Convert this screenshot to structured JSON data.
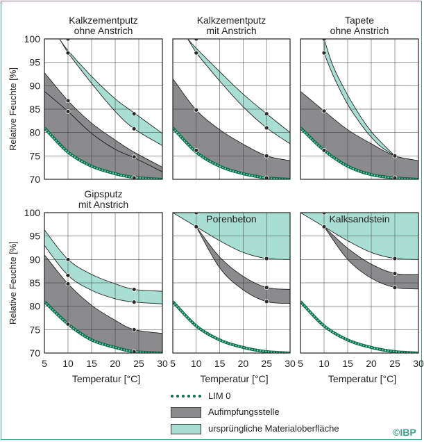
{
  "chart_data": [
    {
      "type": "area",
      "title": "Kalkzementputz ohne Anstrich",
      "title_lines": [
        "Kalkzementputz",
        "ohne Anstrich"
      ],
      "xlabel": "",
      "ylabel": "Relative Feuchte [%]",
      "xlim": [
        5,
        30
      ],
      "ylim": [
        70,
        100
      ],
      "x_ticks": [],
      "y_ticks": [
        "100",
        "95",
        "90",
        "85",
        "80",
        "75",
        "70"
      ],
      "grid": true,
      "bands": [
        {
          "series": "ursprüngliche Materialoberfläche",
          "upper": [
            [
              8.2,
              100
            ],
            [
              10,
              97.5
            ],
            [
              15,
              92
            ],
            [
              20,
              87.2
            ],
            [
              24,
              84.2
            ],
            [
              30,
              79.8
            ]
          ],
          "lower": [
            [
              10,
              97
            ],
            [
              15,
              90.5
            ],
            [
              20,
              84.5
            ],
            [
              24,
              80.8
            ],
            [
              30,
              77.2
            ]
          ]
        },
        {
          "series": "Aufimpfungsstelle",
          "upper": [
            [
              5,
              92.8
            ],
            [
              10,
              86.8
            ],
            [
              15,
              82
            ],
            [
              20,
              78.4
            ],
            [
              24,
              75.8
            ],
            [
              30,
              72.6
            ]
          ],
          "lower": [
            [
              5,
              88.8
            ],
            [
              10,
              84.5
            ],
            [
              15,
              79.8
            ],
            [
              20,
              76.4
            ],
            [
              24,
              74.6
            ],
            [
              30,
              71.6
            ]
          ]
        },
        {
          "series": "Aufimpfungsstelle",
          "upper": [
            [
              5,
              88.8
            ],
            [
              10,
              84.5
            ],
            [
              15,
              79.8
            ],
            [
              20,
              76.4
            ],
            [
              24,
              74.6
            ],
            [
              30,
              71.6
            ]
          ],
          "lower": [
            [
              5,
              81
            ],
            [
              10,
              75.8
            ],
            [
              15,
              72.8
            ],
            [
              20,
              71.2
            ],
            [
              24,
              70.4
            ],
            [
              30,
              70
            ]
          ]
        }
      ],
      "points": [
        [
          10,
          100
        ],
        [
          10,
          97
        ],
        [
          10,
          86.8
        ],
        [
          10,
          84.5
        ],
        [
          24,
          84
        ],
        [
          24,
          80.8
        ],
        [
          24,
          74.8
        ],
        [
          24,
          70.3
        ]
      ]
    },
    {
      "type": "area",
      "title": "Kalkzementputz mit Anstrich",
      "title_lines": [
        "Kalkzementputz",
        "mit Anstrich"
      ],
      "xlabel": "",
      "ylabel": "",
      "xlim": [
        5,
        30
      ],
      "ylim": [
        70,
        100
      ],
      "x_ticks": [],
      "y_ticks": [],
      "grid": true,
      "bands": [
        {
          "series": "ursprüngliche Materialoberfläche",
          "upper": [
            [
              8.2,
              100
            ],
            [
              10,
              98
            ],
            [
              15,
              93
            ],
            [
              20,
              88.2
            ],
            [
              25,
              84
            ],
            [
              30,
              80
            ]
          ],
          "lower": [
            [
              10,
              97
            ],
            [
              15,
              91
            ],
            [
              20,
              85.5
            ],
            [
              25,
              81
            ],
            [
              30,
              77.6
            ]
          ]
        },
        {
          "series": "Aufimpfungsstelle",
          "upper": [
            [
              5,
              91.5
            ],
            [
              10,
              84.8
            ],
            [
              15,
              80.6
            ],
            [
              20,
              77.5
            ],
            [
              25,
              75
            ],
            [
              30,
              74
            ]
          ],
          "lower": [
            [
              5,
              81
            ],
            [
              10,
              75.8
            ],
            [
              15,
              72.8
            ],
            [
              20,
              71.2
            ],
            [
              25,
              70.3
            ],
            [
              30,
              70
            ]
          ]
        }
      ],
      "points": [
        [
          10,
          100
        ],
        [
          10,
          97
        ],
        [
          10,
          84.8
        ],
        [
          10,
          76.2
        ],
        [
          25,
          84
        ],
        [
          25,
          81
        ],
        [
          25,
          75
        ],
        [
          25,
          70.3
        ]
      ]
    },
    {
      "type": "area",
      "title": "Tapete ohne Anstrich",
      "title_lines": [
        "Tapete",
        "ohne Anstrich"
      ],
      "xlabel": "",
      "ylabel": "",
      "xlim": [
        5,
        30
      ],
      "ylim": [
        70,
        100
      ],
      "x_ticks": [],
      "y_ticks": [],
      "grid": true,
      "bands": [
        {
          "series": "ursprüngliche Materialoberfläche",
          "upper": [
            [
              10,
              100
            ],
            [
              12,
              94
            ],
            [
              15,
              88
            ],
            [
              18,
              83
            ],
            [
              20,
              80.2
            ],
            [
              22,
              78
            ],
            [
              25,
              75
            ]
          ],
          "lower": [
            [
              10,
              97
            ],
            [
              12,
              92
            ],
            [
              15,
              86
            ],
            [
              18,
              81.5
            ],
            [
              20,
              79
            ],
            [
              22,
              77
            ],
            [
              25,
              75
            ]
          ]
        },
        {
          "series": "Aufimpfungsstelle",
          "upper": [
            [
              5,
              88.8
            ],
            [
              10,
              84.6
            ],
            [
              15,
              80.6
            ],
            [
              20,
              77.6
            ],
            [
              25,
              75
            ],
            [
              30,
              74
            ]
          ],
          "lower": [
            [
              5,
              81
            ],
            [
              10,
              76.2
            ],
            [
              15,
              72.8
            ],
            [
              20,
              71
            ],
            [
              25,
              70.3
            ],
            [
              30,
              70
            ]
          ]
        }
      ],
      "points": [
        [
          10,
          100
        ],
        [
          10,
          97
        ],
        [
          10,
          84.6
        ],
        [
          10,
          76.2
        ],
        [
          25,
          75
        ],
        [
          25,
          70.3
        ]
      ]
    },
    {
      "type": "area",
      "title": "Gipsputz mit Anstrich",
      "title_lines": [
        "Gipsputz",
        "mit Anstrich"
      ],
      "xlabel": "Temperatur [°C]",
      "ylabel": "Relative Feuchte [%]",
      "xlim": [
        5,
        30
      ],
      "ylim": [
        70,
        100
      ],
      "x_ticks": [
        "5",
        "10",
        "15",
        "20",
        "25",
        "30"
      ],
      "y_ticks": [
        "100",
        "95",
        "90",
        "85",
        "80",
        "75",
        "70"
      ],
      "grid": true,
      "bands": [
        {
          "series": "ursprüngliche Materialoberfläche",
          "upper": [
            [
              5,
              96.3
            ],
            [
              10,
              90
            ],
            [
              15,
              86.8
            ],
            [
              20,
              84.8
            ],
            [
              24,
              83.6
            ],
            [
              30,
              83.2
            ]
          ],
          "lower": [
            [
              5,
              93
            ],
            [
              10,
              86.6
            ],
            [
              15,
              83.4
            ],
            [
              20,
              81.6
            ],
            [
              24,
              80.9
            ],
            [
              30,
              80.5
            ]
          ]
        },
        {
          "series": "Aufimpfungsstelle",
          "upper": [
            [
              5,
              91
            ],
            [
              10,
              84.8
            ],
            [
              15,
              80.2
            ],
            [
              20,
              77
            ],
            [
              24,
              75
            ],
            [
              30,
              74.2
            ]
          ],
          "lower": [
            [
              5,
              81
            ],
            [
              10,
              76.2
            ],
            [
              15,
              72.8
            ],
            [
              20,
              71.2
            ],
            [
              24,
              70.3
            ],
            [
              30,
              70
            ]
          ]
        }
      ],
      "points": [
        [
          10,
          90
        ],
        [
          10,
          86.6
        ],
        [
          10,
          84.8
        ],
        [
          10,
          76.2
        ],
        [
          24,
          83.6
        ],
        [
          24,
          80.9
        ],
        [
          24,
          75
        ],
        [
          24,
          70.3
        ]
      ]
    },
    {
      "type": "area",
      "title": "Porenbeton",
      "title_lines": [
        "Porenbeton"
      ],
      "xlabel": "Temperatur [°C]",
      "ylabel": "",
      "xlim": [
        5,
        30
      ],
      "ylim": [
        70,
        100
      ],
      "x_ticks": [
        "5",
        "10",
        "15",
        "20",
        "25",
        "30"
      ],
      "y_ticks": [],
      "grid": true,
      "bands": [
        {
          "series": "ursprüngliche Materialoberfläche",
          "upper": [
            [
              5,
              100
            ],
            [
              30,
              100
            ]
          ],
          "lower": [
            [
              5,
              100
            ],
            [
              10,
              97
            ],
            [
              15,
              94
            ],
            [
              20,
              91.5
            ],
            [
              25,
              90.2
            ],
            [
              30,
              90
            ]
          ]
        },
        {
          "series": "Aufimpfungsstelle",
          "upper": [
            [
              10,
              97
            ],
            [
              15,
              90.5
            ],
            [
              20,
              86.4
            ],
            [
              25,
              84
            ],
            [
              30,
              83.6
            ]
          ],
          "lower": [
            [
              10,
              97
            ],
            [
              15,
              88.2
            ],
            [
              20,
              83.5
            ],
            [
              25,
              81
            ],
            [
              30,
              80.6
            ]
          ]
        }
      ],
      "lim0": [
        [
          5,
          81
        ],
        [
          10,
          75.8
        ],
        [
          15,
          72.8
        ],
        [
          20,
          71.2
        ],
        [
          25,
          70.3
        ],
        [
          30,
          70
        ]
      ],
      "points": [
        [
          10,
          100
        ],
        [
          10,
          97
        ],
        [
          25,
          90.2
        ],
        [
          25,
          84
        ],
        [
          25,
          81
        ]
      ]
    },
    {
      "type": "area",
      "title": "Kalksandstein",
      "title_lines": [
        "Kalksandstein"
      ],
      "xlabel": "Temperatur [°C]",
      "ylabel": "",
      "xlim": [
        5,
        30
      ],
      "ylim": [
        70,
        100
      ],
      "x_ticks": [
        "5",
        "10",
        "15",
        "20",
        "25",
        "30"
      ],
      "y_ticks": [],
      "grid": true,
      "bands": [
        {
          "series": "ursprüngliche Materialoberfläche",
          "upper": [
            [
              5,
              100
            ],
            [
              30,
              100
            ]
          ],
          "lower": [
            [
              5,
              100
            ],
            [
              10,
              97
            ],
            [
              15,
              94
            ],
            [
              20,
              91.5
            ],
            [
              25,
              90.2
            ],
            [
              30,
              90
            ]
          ]
        },
        {
          "series": "Aufimpfungsstelle",
          "upper": [
            [
              10,
              97
            ],
            [
              15,
              92.4
            ],
            [
              20,
              89
            ],
            [
              25,
              87
            ],
            [
              30,
              86.8
            ]
          ],
          "lower": [
            [
              10,
              97
            ],
            [
              15,
              90
            ],
            [
              20,
              86
            ],
            [
              25,
              84
            ],
            [
              30,
              83.7
            ]
          ]
        }
      ],
      "lim0": [
        [
          5,
          81
        ],
        [
          10,
          75.8
        ],
        [
          15,
          72.8
        ],
        [
          20,
          71.2
        ],
        [
          25,
          70.3
        ],
        [
          30,
          70
        ]
      ],
      "points": [
        [
          10,
          100
        ],
        [
          10,
          97
        ],
        [
          25,
          90.2
        ],
        [
          25,
          87
        ],
        [
          25,
          84
        ]
      ]
    }
  ],
  "legend": {
    "lim0": "LIM 0",
    "aufimpfung": "Aufimpfungsstelle",
    "material": "ursprüngliche Materialoberfläche"
  },
  "copyright": "©IBP",
  "colors": {
    "material": "#a9dfd2",
    "aufimpfung": "#8b8b8d",
    "lim0_dark": "#0d6a4a",
    "lim0_light": "#6bd2b3",
    "border": "#3aa38a"
  }
}
